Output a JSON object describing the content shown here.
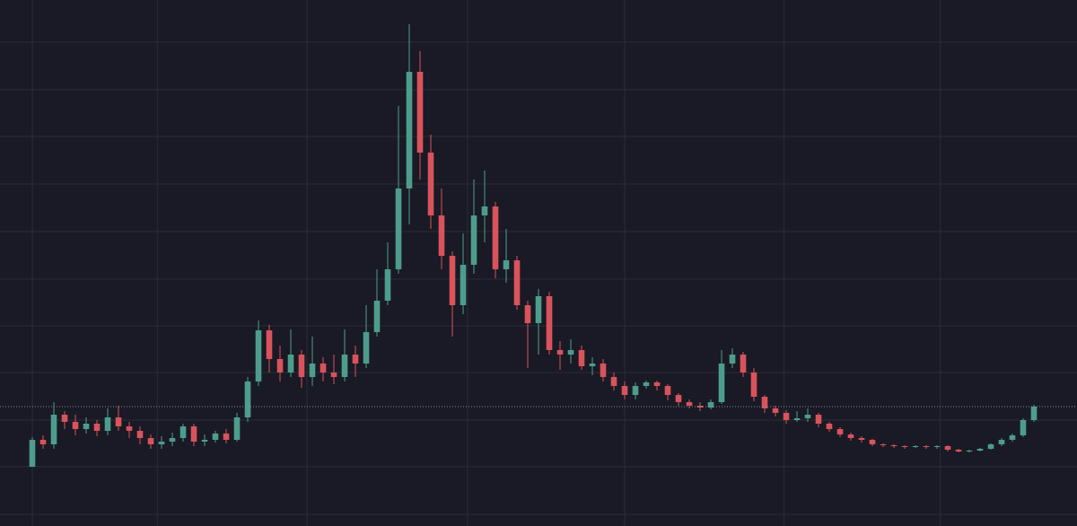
{
  "chart_data": {
    "type": "candlestick",
    "background": "#191a25",
    "up_color": "#4e9d8c",
    "down_color": "#d9535b",
    "grid": true,
    "grid_color": "#2a2c38",
    "xlim": [
      -3,
      97
    ],
    "xticks": [
      0,
      11.6,
      25.5,
      40.4,
      55,
      69.8,
      84.3
    ],
    "ylim": [
      0,
      586
    ],
    "yticks": [
      539,
      486,
      434,
      381,
      328,
      275,
      223,
      171,
      118,
      66,
      13
    ],
    "open": [
      66,
      96,
      91,
      124,
      116,
      108,
      114,
      106,
      121,
      111,
      106,
      98,
      91,
      94,
      98,
      111,
      94,
      96,
      103,
      96,
      121,
      161,
      218,
      186,
      171,
      191,
      166,
      181,
      171,
      166,
      191,
      181,
      216,
      251,
      286,
      376,
      506,
      416,
      346,
      301,
      246,
      291,
      346,
      356,
      286,
      296,
      246,
      226,
      256,
      196,
      191,
      196,
      178,
      181,
      166,
      156,
      146,
      156,
      160,
      156,
      146,
      138,
      134,
      132,
      138,
      181,
      191,
      171,
      144,
      131,
      126,
      118,
      120,
      124,
      114,
      108,
      102,
      98,
      96,
      91,
      90,
      89,
      88,
      89,
      88,
      89,
      85,
      83,
      84,
      86,
      91,
      96,
      101,
      118
    ],
    "high": [
      99,
      101,
      138,
      128,
      124,
      121,
      118,
      131,
      134,
      116,
      111,
      102,
      100,
      104,
      114,
      114,
      102,
      106,
      108,
      126,
      166,
      229,
      224,
      201,
      219,
      196,
      211,
      188,
      191,
      219,
      201,
      246,
      286,
      316,
      468,
      559,
      529,
      436,
      376,
      306,
      326,
      386,
      396,
      361,
      331,
      301,
      251,
      264,
      261,
      206,
      208,
      201,
      188,
      186,
      171,
      161,
      160,
      162,
      162,
      158,
      148,
      141,
      138,
      141,
      196,
      198,
      194,
      176,
      146,
      134,
      129,
      128,
      131,
      126,
      116,
      110,
      104,
      100,
      97,
      92,
      91,
      90,
      90,
      90,
      90,
      90,
      86,
      85,
      87,
      92,
      98,
      103,
      120,
      135
    ],
    "low": [
      66,
      86,
      86,
      108,
      101,
      103,
      100,
      101,
      106,
      98,
      91,
      86,
      86,
      89,
      94,
      89,
      89,
      93,
      92,
      94,
      116,
      156,
      171,
      161,
      166,
      154,
      156,
      161,
      158,
      161,
      166,
      176,
      211,
      246,
      281,
      336,
      386,
      331,
      286,
      211,
      236,
      281,
      316,
      276,
      271,
      241,
      176,
      191,
      191,
      174,
      181,
      174,
      168,
      161,
      151,
      141,
      141,
      153,
      151,
      140,
      134,
      131,
      128,
      130,
      136,
      176,
      166,
      139,
      126,
      122,
      114,
      116,
      116,
      110,
      105,
      99,
      95,
      93,
      89,
      88,
      87,
      86,
      87,
      86,
      86,
      83,
      82,
      82,
      83,
      85,
      89,
      94,
      99,
      116
    ],
    "close": [
      96,
      91,
      124,
      116,
      108,
      114,
      106,
      121,
      111,
      106,
      98,
      91,
      94,
      98,
      111,
      94,
      96,
      103,
      96,
      121,
      161,
      218,
      186,
      171,
      191,
      166,
      181,
      171,
      166,
      191,
      181,
      216,
      251,
      286,
      376,
      506,
      416,
      346,
      301,
      246,
      291,
      346,
      356,
      286,
      296,
      246,
      226,
      256,
      196,
      191,
      196,
      178,
      181,
      166,
      156,
      146,
      156,
      160,
      156,
      146,
      138,
      134,
      132,
      138,
      181,
      191,
      171,
      144,
      131,
      126,
      118,
      120,
      124,
      114,
      108,
      102,
      98,
      96,
      91,
      90,
      89,
      88,
      89,
      88,
      89,
      85,
      83,
      84,
      86,
      91,
      96,
      101,
      118,
      133
    ],
    "last_price_line_color": "#8a8f9c"
  }
}
